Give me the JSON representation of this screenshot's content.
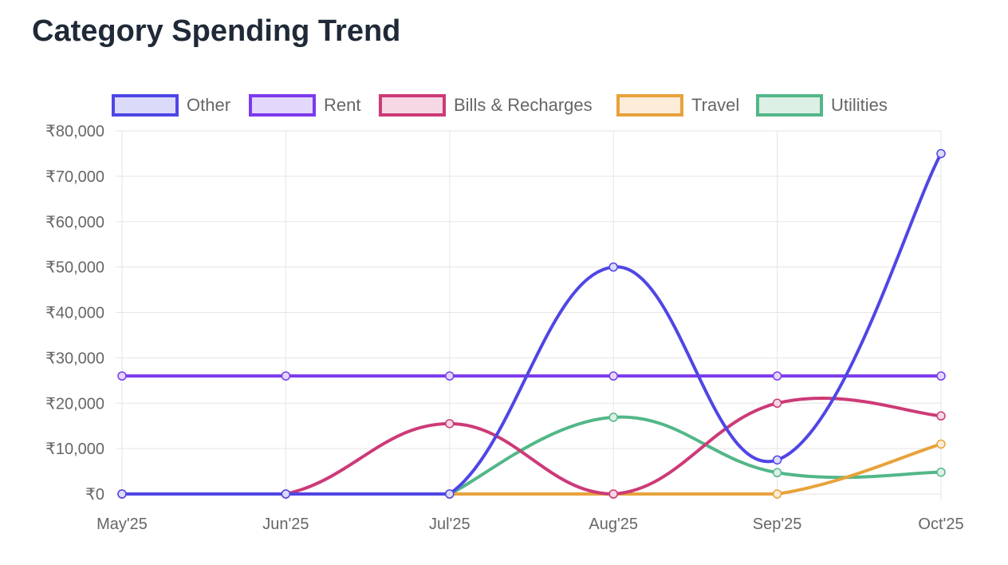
{
  "title": "Category Spending Trend",
  "chart_data": {
    "type": "line",
    "title": "Category Spending Trend",
    "categories": [
      "May'25",
      "Jun'25",
      "Jul'25",
      "Aug'25",
      "Sep'25",
      "Oct'25"
    ],
    "ylim": [
      0,
      80000
    ],
    "yticks": [
      0,
      10000,
      20000,
      30000,
      40000,
      50000,
      60000,
      70000,
      80000
    ],
    "ytick_labels": [
      "₹0",
      "₹10,000",
      "₹20,000",
      "₹30,000",
      "₹40,000",
      "₹50,000",
      "₹60,000",
      "₹70,000",
      "₹80,000"
    ],
    "grid": true,
    "legend": "top",
    "series": [
      {
        "name": "Other",
        "color": "#4f46e5",
        "fill": "#dcdaf9",
        "values": [
          0,
          0,
          0,
          50000,
          7500,
          75000
        ]
      },
      {
        "name": "Rent",
        "color": "#7c3aed",
        "fill": "#e3d7fb",
        "values": [
          26000,
          26000,
          26000,
          26000,
          26000,
          26000
        ]
      },
      {
        "name": "Bills & Recharges",
        "color": "#cc3a77",
        "fill": "#f6d8e4",
        "values": [
          0,
          0,
          15500,
          0,
          20000,
          17200
        ]
      },
      {
        "name": "Travel",
        "color": "#e8a23b",
        "fill": "#fcecd8",
        "values": [
          null,
          null,
          0,
          0,
          0,
          11000
        ]
      },
      {
        "name": "Utilities",
        "color": "#52b788",
        "fill": "#dcf0e6",
        "values": [
          null,
          null,
          0,
          16900,
          4700,
          4800
        ]
      }
    ]
  }
}
